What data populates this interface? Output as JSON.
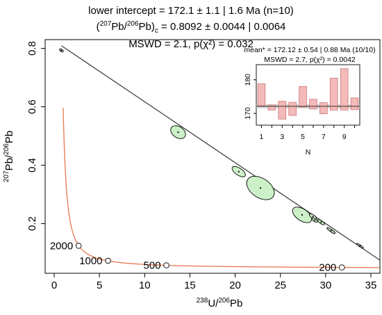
{
  "title": {
    "line1": "lower intercept = 172.1 ± 1.1 | 1.6 Ma (n=10)",
    "line2_prefix": "(",
    "line2_sup1": "207",
    "line2_mid": "Pb/",
    "line2_sup2": "206",
    "line2_end": "Pb)",
    "line2_sub": "c",
    "line2_rest": " = 0.8092 ± 0.0044 | 0.0064",
    "line3": "MSWD = 2.1, p(χ²) = 0.032"
  },
  "chart_data": [
    {
      "type": "scatter",
      "subtype": "Tera-Wasserburg concordia with error ellipses",
      "xlabel": {
        "sup": "238",
        "main": "U/",
        "sup2": "206",
        "end": "Pb"
      },
      "ylabel": {
        "sup": "207",
        "main": "Pb/",
        "sup2": "206",
        "end": "Pb"
      },
      "xlim": [
        -1,
        36
      ],
      "ylim": [
        0.03,
        0.83
      ],
      "xticks": [
        0,
        5,
        10,
        15,
        20,
        25,
        30,
        35
      ],
      "yticks": [
        0.2,
        0.4,
        0.6,
        0.8
      ],
      "xtick_labels": [
        "0",
        "5",
        "10",
        "15",
        "20",
        "25",
        "30",
        "35"
      ],
      "ytick_labels": [
        "0.2",
        "0.4",
        "0.6",
        "0.8"
      ],
      "regression_line": {
        "intercept_y": 0.8092,
        "points": [
          [
            0.8,
            0.8092
          ],
          [
            36,
            0.075
          ]
        ]
      },
      "ellipses": [
        {
          "x": 0.8,
          "y": 0.793,
          "rx": 0.25,
          "ry": 0.004
        },
        {
          "x": 13.7,
          "y": 0.513,
          "rx": 0.9,
          "ry": 0.019
        },
        {
          "x": 20.4,
          "y": 0.378,
          "rx": 0.85,
          "ry": 0.012
        },
        {
          "x": 22.8,
          "y": 0.322,
          "rx": 1.7,
          "ry": 0.033
        },
        {
          "x": 27.4,
          "y": 0.23,
          "rx": 1.2,
          "ry": 0.02
        },
        {
          "x": 28.6,
          "y": 0.224,
          "rx": 0.45,
          "ry": 0.006
        },
        {
          "x": 28.8,
          "y": 0.212,
          "rx": 0.35,
          "ry": 0.005
        },
        {
          "x": 29.5,
          "y": 0.205,
          "rx": 0.45,
          "ry": 0.005
        },
        {
          "x": 30.6,
          "y": 0.176,
          "rx": 0.55,
          "ry": 0.004
        },
        {
          "x": 33.8,
          "y": 0.124,
          "rx": 0.45,
          "ry": 0.003
        }
      ],
      "concordia_labels": [
        {
          "age": "2000",
          "x": 2.7,
          "y": 0.124
        },
        {
          "age": "1000",
          "x": 5.95,
          "y": 0.073
        },
        {
          "age": "500",
          "x": 12.4,
          "y": 0.057
        },
        {
          "age": "200",
          "x": 31.8,
          "y": 0.05
        }
      ],
      "colors": {
        "concordia": "#E8774F",
        "ellipse_fill": "#ccf0c8",
        "line": "#444444"
      }
    },
    {
      "type": "bar",
      "subtype": "weighted mean inset",
      "title_line1": "mean* = 172.12 ± 0.54 | 0.88 Ma (10/10)",
      "title_line2": "MSWD = 2.7, p(χ²) = 0.0042",
      "xlabel": "N",
      "categories": [
        1,
        2,
        3,
        4,
        5,
        6,
        7,
        8,
        9,
        10
      ],
      "xtick_labels": [
        "1",
        "3",
        "5",
        "7",
        "9"
      ],
      "yticks": [
        170,
        180
      ],
      "ylim": [
        166.5,
        184.5
      ],
      "mean": 172.12,
      "values_low": [
        172.3,
        171.0,
        168.3,
        169.4,
        171.9,
        171.3,
        169.9,
        171.0,
        171.0,
        171.1
      ],
      "values_high": [
        178.8,
        172.5,
        173.6,
        173.3,
        178.0,
        174.2,
        173.2,
        180.5,
        183.3,
        174.6
      ],
      "colors": {
        "bar": "#f4b9b9",
        "bar_edge": "#cc7777",
        "band": "#cccccc"
      }
    }
  ]
}
